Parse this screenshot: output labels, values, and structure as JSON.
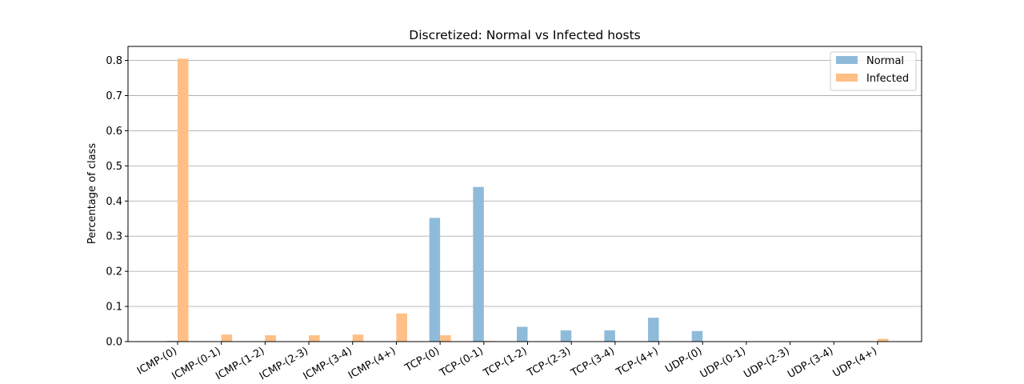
{
  "chart_data": {
    "type": "bar",
    "title": "Discretized: Normal vs Infected hosts",
    "xlabel": "",
    "ylabel": "Percentage of class",
    "ylim": [
      0,
      0.84
    ],
    "yticks": [
      "0.0",
      "0.1",
      "0.2",
      "0.3",
      "0.4",
      "0.5",
      "0.6",
      "0.7",
      "0.8"
    ],
    "grid": "horizontal",
    "legend_position": "top-right",
    "categories": [
      "ICMP-(0)",
      "ICMP-(0-1)",
      "ICMP-(1-2)",
      "ICMP-(2-3)",
      "ICMP-(3-4)",
      "ICMP-(4+)",
      "TCP-(0)",
      "TCP-(0-1)",
      "TCP-(1-2)",
      "TCP-(2-3)",
      "TCP-(3-4)",
      "TCP-(4+)",
      "UDP-(0)",
      "UDP-(0-1)",
      "UDP-(2-3)",
      "UDP-(3-4)",
      "UDP-(4+)"
    ],
    "series": [
      {
        "name": "Normal",
        "color": "#8fbbda",
        "values": [
          0.002,
          0.0,
          0.0,
          0.0,
          0.0,
          0.0,
          0.352,
          0.44,
          0.042,
          0.032,
          0.032,
          0.068,
          0.03,
          0.0,
          0.0,
          0.0,
          0.0
        ]
      },
      {
        "name": "Infected",
        "color": "#ffbf86",
        "values": [
          0.805,
          0.02,
          0.018,
          0.018,
          0.02,
          0.08,
          0.018,
          0.002,
          0.0,
          0.0,
          0.0,
          0.0,
          0.0,
          0.0,
          0.0,
          0.0,
          0.008
        ]
      }
    ]
  }
}
